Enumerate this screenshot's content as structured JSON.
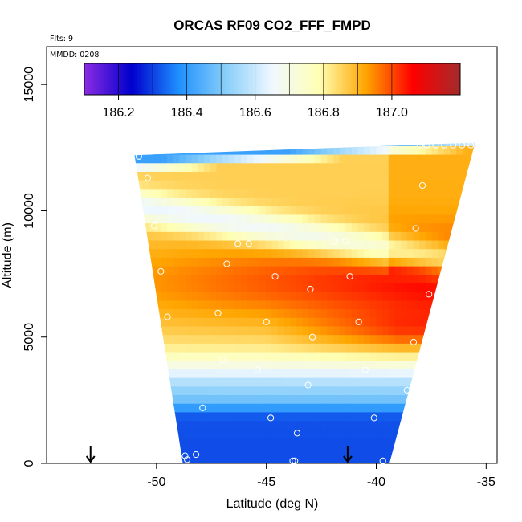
{
  "chart_data": {
    "type": "heatmap",
    "title": "ORCAS RF09 CO2_FFF_FMPD",
    "annotations": {
      "flights": "Flts: 9",
      "date": "MMDD: 0208"
    },
    "xlabel": "Latitude (deg N)",
    "ylabel": "Altitude (m)",
    "xlim": [
      -55,
      -34.5
    ],
    "ylim": [
      0,
      16500
    ],
    "xticks": [
      -50,
      -45,
      -40,
      -35
    ],
    "xtick_labels": [
      "-50",
      "-45",
      "-40",
      "-35"
    ],
    "yticks": [
      0,
      5000,
      10000,
      15000
    ],
    "ytick_labels": [
      "0",
      "5000",
      "10000",
      "15000"
    ],
    "colorbar": {
      "min": 186.1,
      "max": 187.2,
      "ticks": [
        186.2,
        186.4,
        186.6,
        186.8,
        187.0
      ],
      "tick_labels": [
        "186.2",
        "186.4",
        "186.6",
        "186.8",
        "187.0"
      ],
      "colors": [
        "#8a2be2",
        "#0000cd",
        "#1e90ff",
        "#87cefa",
        "#f0f8ff",
        "#ffffb3",
        "#ffa500",
        "#ff0000",
        "#a52a2a"
      ]
    },
    "curtain_envelope": {
      "bottom_left": [
        -48.8,
        0
      ],
      "upper_left": [
        -51.0,
        12200
      ],
      "bottom_right": [
        -39.4,
        0
      ],
      "upper_right": [
        -35.5,
        12700
      ]
    },
    "profile_markers": [
      -53.0,
      -41.3
    ],
    "observations": [
      [
        -48.7,
        300
      ],
      [
        -48.6,
        150
      ],
      [
        -48.2,
        350
      ],
      [
        -43.8,
        100
      ],
      [
        -43.7,
        100
      ],
      [
        -39.7,
        100
      ],
      [
        -43.6,
        1200
      ],
      [
        -44.8,
        1800
      ],
      [
        -40.1,
        1800
      ],
      [
        -47.9,
        2200
      ],
      [
        -38.6,
        2900
      ],
      [
        -43.1,
        3100
      ],
      [
        -45.4,
        3700
      ],
      [
        -40.5,
        3700
      ],
      [
        -47.0,
        4100
      ],
      [
        -38.3,
        4800
      ],
      [
        -42.9,
        5000
      ],
      [
        -49.5,
        5800
      ],
      [
        -47.2,
        5950
      ],
      [
        -45.0,
        5600
      ],
      [
        -40.8,
        5600
      ],
      [
        -37.6,
        6700
      ],
      [
        -43.0,
        6900
      ],
      [
        -49.8,
        7600
      ],
      [
        -44.6,
        7400
      ],
      [
        -41.2,
        7400
      ],
      [
        -46.8,
        7900
      ],
      [
        -46.3,
        8700
      ],
      [
        -45.8,
        8700
      ],
      [
        -41.9,
        8800
      ],
      [
        -41.4,
        8800
      ],
      [
        -50.1,
        9400
      ],
      [
        -38.2,
        9300
      ],
      [
        -37.9,
        11000
      ],
      [
        -50.4,
        11300
      ],
      [
        -50.8,
        12150
      ],
      [
        -38.0,
        12600
      ],
      [
        -37.7,
        12600
      ],
      [
        -37.3,
        12600
      ],
      [
        -36.9,
        12600
      ],
      [
        -36.5,
        12600
      ],
      [
        -36.1,
        12600
      ],
      [
        -35.7,
        12600
      ]
    ]
  }
}
